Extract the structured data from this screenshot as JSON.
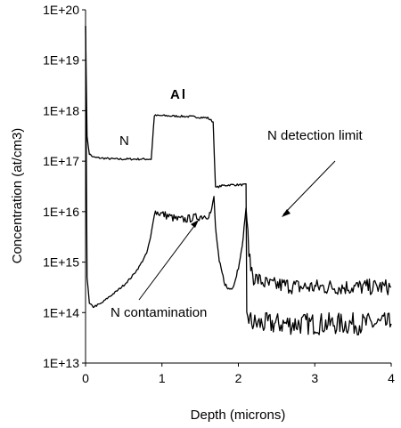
{
  "chart_data": {
    "type": "line",
    "title": "",
    "xlabel": "Depth (microns)",
    "ylabel": "Concentration (at/cm3)",
    "xlim": [
      0,
      4
    ],
    "ylim": [
      10000000000000.0,
      1e+20
    ],
    "yscale": "log",
    "grid": false,
    "legend": "none",
    "x_ticks": [
      0,
      1,
      2,
      3,
      4
    ],
    "x_tick_labels": [
      "0",
      "1",
      "2",
      "3",
      "4"
    ],
    "y_ticks": [
      10000000000000.0,
      100000000000000.0,
      1000000000000000.0,
      1e+16,
      1e+17,
      1e+18,
      1e+19,
      1e+20
    ],
    "y_tick_labels": [
      "1E+13",
      "1E+14",
      "1E+15",
      "1E+16",
      "1E+17",
      "1E+18",
      "1E+19",
      "1E+20"
    ],
    "series": [
      {
        "name": "Al",
        "color": "#000000",
        "x": [
          0.0,
          0.02,
          0.05,
          0.1,
          0.2,
          0.4,
          0.6,
          0.8,
          0.86,
          0.9,
          1.0,
          1.2,
          1.4,
          1.6,
          1.67,
          1.7,
          1.8,
          1.9,
          2.0,
          2.1,
          2.11,
          2.15,
          2.2,
          2.4,
          2.6,
          2.8,
          3.0,
          3.2,
          3.4,
          3.6,
          3.8,
          4.0
        ],
        "y": [
          5e+19,
          3e+17,
          1.4e+17,
          1.2e+17,
          1.15e+17,
          1.1e+17,
          1.1e+17,
          1.1e+17,
          1.1e+17,
          8e+17,
          8e+17,
          7.8e+17,
          7.6e+17,
          7.2e+17,
          6e+17,
          3e+16,
          3.3e+16,
          3.4e+16,
          3.4e+16,
          3.4e+16,
          100000000000000.0,
          70000000000000.0,
          60000000000000.0,
          60000000000000.0,
          60000000000000.0,
          60000000000000.0,
          60000000000000.0,
          60000000000000.0,
          60000000000000.0,
          60000000000000.0,
          60000000000000.0,
          60000000000000.0
        ]
      },
      {
        "name": "N",
        "color": "#000000",
        "x": [
          0.0,
          0.02,
          0.05,
          0.1,
          0.2,
          0.3,
          0.4,
          0.5,
          0.6,
          0.7,
          0.8,
          0.85,
          0.88,
          0.9,
          1.0,
          1.1,
          1.2,
          1.3,
          1.4,
          1.5,
          1.6,
          1.65,
          1.68,
          1.7,
          1.75,
          1.8,
          1.85,
          1.9,
          1.95,
          2.0,
          2.05,
          2.1,
          2.15,
          2.2,
          2.4,
          2.6,
          2.8,
          3.0,
          3.2,
          3.4,
          3.6,
          3.8,
          4.0
        ],
        "y": [
          5e+19,
          500000000000000.0,
          150000000000000.0,
          130000000000000.0,
          150000000000000.0,
          200000000000000.0,
          260000000000000.0,
          350000000000000.0,
          500000000000000.0,
          800000000000000.0,
          1500000000000000.0,
          3000000000000000.0,
          6000000000000000.0,
          1e+16,
          9000000000000000.0,
          8000000000000000.0,
          7000000000000000.0,
          7000000000000000.0,
          7500000000000000.0,
          8000000000000000.0,
          8500000000000000.0,
          1e+16,
          2e+16,
          5000000000000000.0,
          1000000000000000.0,
          500000000000000.0,
          300000000000000.0,
          300000000000000.0,
          400000000000000.0,
          800000000000000.0,
          2000000000000000.0,
          1.2e+16,
          1000000000000000.0,
          500000000000000.0,
          350000000000000.0,
          350000000000000.0,
          320000000000000.0,
          320000000000000.0,
          320000000000000.0,
          320000000000000.0,
          320000000000000.0,
          320000000000000.0,
          320000000000000.0
        ]
      }
    ],
    "annotations": [
      {
        "text": "N",
        "x": 0.55,
        "y": 1.8e+17
      },
      {
        "text": "Al",
        "x": 1.18,
        "y": 2e+18
      },
      {
        "text": "N detection limit",
        "x": 2.35,
        "y": 2.4e+17,
        "arrow_to": [
          2.6,
          7000000000000000.0
        ]
      },
      {
        "text": "N contamination",
        "x": 0.35,
        "y": 200000000000000.0,
        "arrow_to": [
          1.45,
          7000000000000000.0
        ]
      }
    ]
  },
  "labels": {
    "ylabel": "Concentration (at/cm3)",
    "xlabel": "Depth (microns)",
    "ann_n": "N",
    "ann_al": "Al",
    "ann_detect": "N detection limit",
    "ann_contam": "N contamination"
  }
}
